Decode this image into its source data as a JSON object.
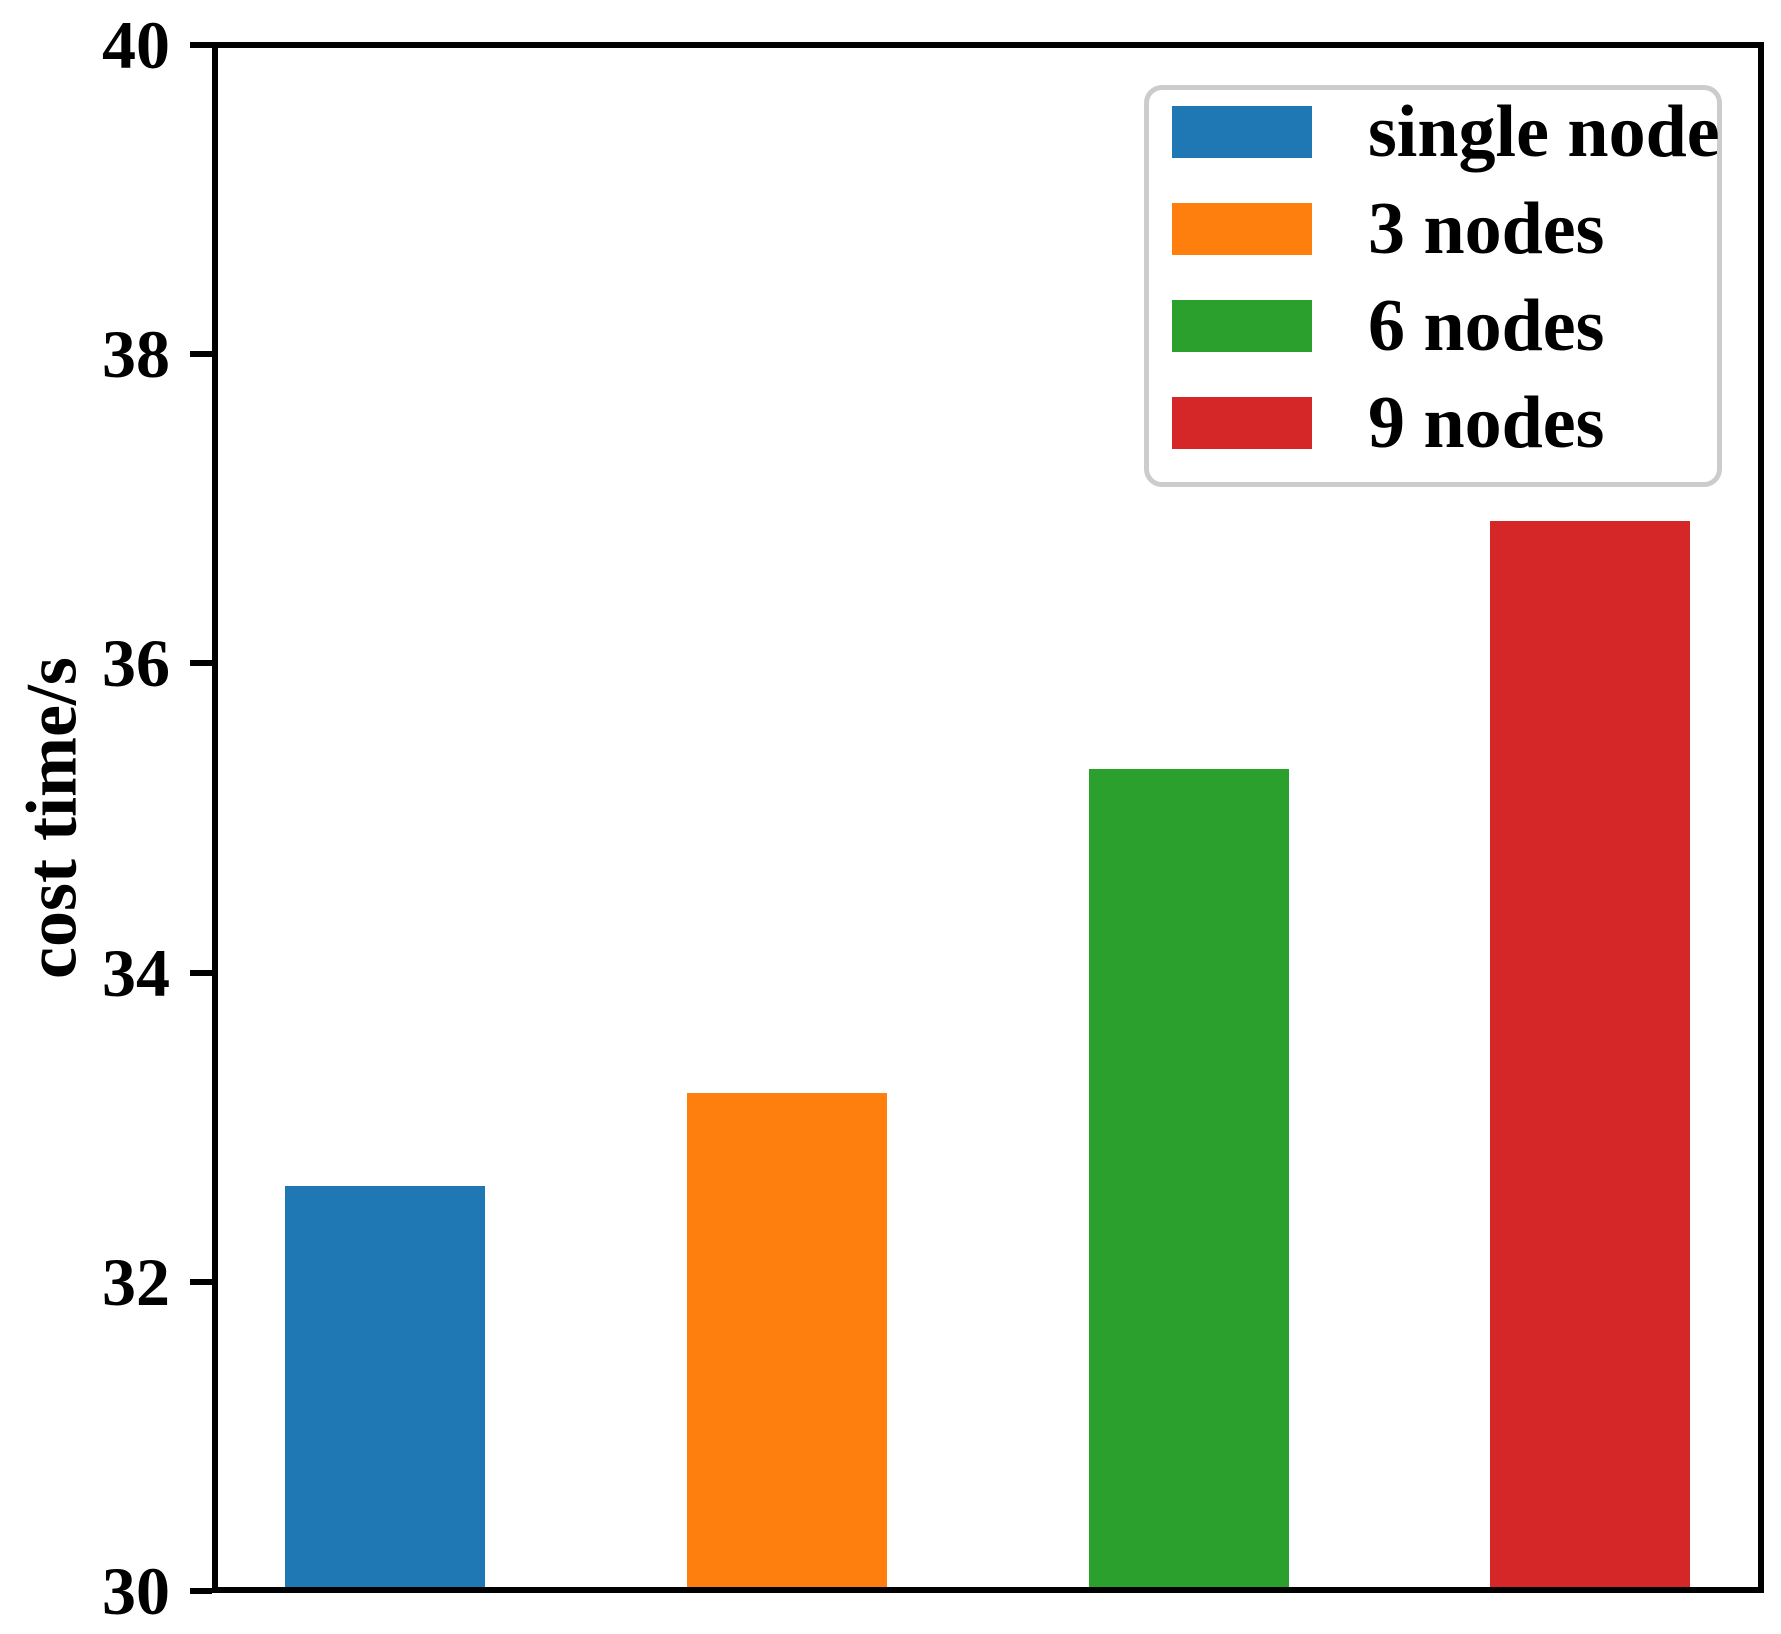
{
  "figure": {
    "background": "#ffffff",
    "axis_color": "#000000",
    "text_color": "#000000",
    "legend_border_color": "#cccccc"
  },
  "chart_data": {
    "type": "bar",
    "title": "",
    "xlabel": "",
    "ylabel": "cost time/s",
    "categories": [
      "single node",
      "3 nodes",
      "6 nodes",
      "9 nodes"
    ],
    "values": [
      32.6,
      33.2,
      35.3,
      36.9
    ],
    "bar_colors": [
      "#1f77b4",
      "#ff7f0e",
      "#2ca02c",
      "#d62728"
    ],
    "ylim": [
      30,
      40
    ],
    "yticks": [
      30,
      32,
      34,
      36,
      38,
      40
    ],
    "xticklabels": [],
    "grid": false,
    "legend": {
      "position": "upper right",
      "entries": [
        {
          "label": "single node",
          "color": "#1f77b4"
        },
        {
          "label": "3 nodes",
          "color": "#ff7f0e"
        },
        {
          "label": "6 nodes",
          "color": "#2ca02c"
        },
        {
          "label": "9 nodes",
          "color": "#d62728"
        }
      ]
    }
  }
}
